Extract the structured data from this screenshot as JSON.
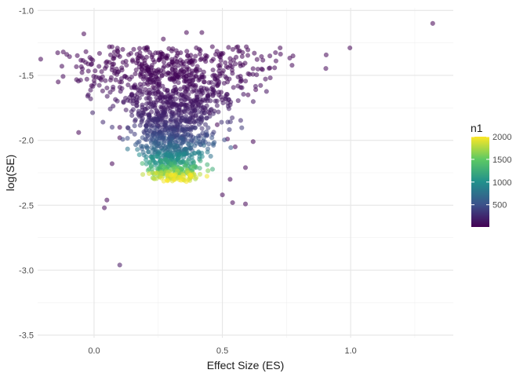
{
  "chart_data": {
    "type": "scatter",
    "title": "",
    "xlabel": "Effect Size (ES)",
    "ylabel": "log(SE)",
    "xlim": [
      -0.22,
      1.4
    ],
    "ylim": [
      -3.52,
      -0.98
    ],
    "x_ticks": [
      0.0,
      0.5,
      1.0
    ],
    "x_tick_labels": [
      "0.0",
      "0.5",
      "1.0"
    ],
    "y_ticks": [
      -1.0,
      -1.5,
      -2.0,
      -2.5,
      -3.0,
      -3.5
    ],
    "y_tick_labels": [
      "-1.0",
      "-1.5",
      "-2.0",
      "-2.5",
      "-3.0",
      "-3.5"
    ],
    "grid": true,
    "point_opacity": 0.55,
    "color_scale": {
      "variable": "n1",
      "palette": "viridis",
      "colors": [
        "#440154",
        "#3b528b",
        "#21908c",
        "#5dc963",
        "#fde725"
      ],
      "domain": [
        10,
        2000
      ],
      "breaks": [
        500,
        1000,
        1500,
        2000
      ],
      "break_labels": [
        "500",
        "1000",
        "1500",
        "2000"
      ]
    },
    "legend": {
      "title": "n1",
      "position": "right"
    },
    "points": [
      {
        "x": 1.32,
        "y": -1.1,
        "n": 10
      },
      {
        "x": -0.04,
        "y": -1.18,
        "n": 10
      },
      {
        "x": -0.12,
        "y": -1.32,
        "n": 10
      },
      {
        "x": -0.14,
        "y": -1.55,
        "n": 10
      },
      {
        "x": -0.06,
        "y": -1.94,
        "n": 12
      },
      {
        "x": -0.01,
        "y": -1.58,
        "n": 11
      },
      {
        "x": 0.0,
        "y": -1.54,
        "n": 11
      },
      {
        "x": 0.06,
        "y": -1.28,
        "n": 10
      },
      {
        "x": 0.07,
        "y": -1.28,
        "n": 10
      },
      {
        "x": 0.06,
        "y": -1.4,
        "n": 10
      },
      {
        "x": 0.1,
        "y": -1.55,
        "n": 11
      },
      {
        "x": 0.27,
        "y": -1.22,
        "n": 10
      },
      {
        "x": 0.36,
        "y": -1.17,
        "n": 10
      },
      {
        "x": 0.42,
        "y": -1.17,
        "n": 10
      },
      {
        "x": 0.56,
        "y": -1.28,
        "n": 10
      },
      {
        "x": 0.53,
        "y": -1.37,
        "n": 10
      },
      {
        "x": 0.38,
        "y": -1.4,
        "n": 10
      },
      {
        "x": 0.58,
        "y": -1.42,
        "n": 11
      },
      {
        "x": 0.35,
        "y": -1.47,
        "n": 11
      },
      {
        "x": 0.48,
        "y": -1.52,
        "n": 11
      },
      {
        "x": 0.43,
        "y": -1.55,
        "n": 11
      },
      {
        "x": 0.63,
        "y": -1.61,
        "n": 12
      },
      {
        "x": 0.6,
        "y": -1.65,
        "n": 12
      },
      {
        "x": 0.62,
        "y": -2.01,
        "n": 15
      },
      {
        "x": 0.59,
        "y": -2.21,
        "n": 17
      },
      {
        "x": 0.53,
        "y": -2.3,
        "n": 18
      },
      {
        "x": 0.54,
        "y": -2.48,
        "n": 22
      },
      {
        "x": 0.59,
        "y": -2.49,
        "n": 22
      },
      {
        "x": 0.1,
        "y": -2.96,
        "n": 110
      },
      {
        "x": 0.05,
        "y": -2.46,
        "n": 20
      },
      {
        "x": 0.04,
        "y": -2.52,
        "n": 24
      },
      {
        "x": 0.07,
        "y": -2.18,
        "n": 16
      },
      {
        "x": 0.1,
        "y": -1.98,
        "n": 14
      },
      {
        "x": 0.1,
        "y": -1.9,
        "n": 14
      },
      {
        "x": 0.21,
        "y": -1.57,
        "n": 12
      },
      {
        "x": 0.23,
        "y": -1.59,
        "n": 12
      },
      {
        "x": 0.45,
        "y": -1.79,
        "n": 13
      },
      {
        "x": 0.48,
        "y": -1.88,
        "n": 14
      },
      {
        "x": 0.52,
        "y": -1.99,
        "n": 15
      },
      {
        "x": 0.55,
        "y": -2.05,
        "n": 16
      },
      {
        "x": 0.5,
        "y": -2.42,
        "n": 20
      }
    ]
  }
}
